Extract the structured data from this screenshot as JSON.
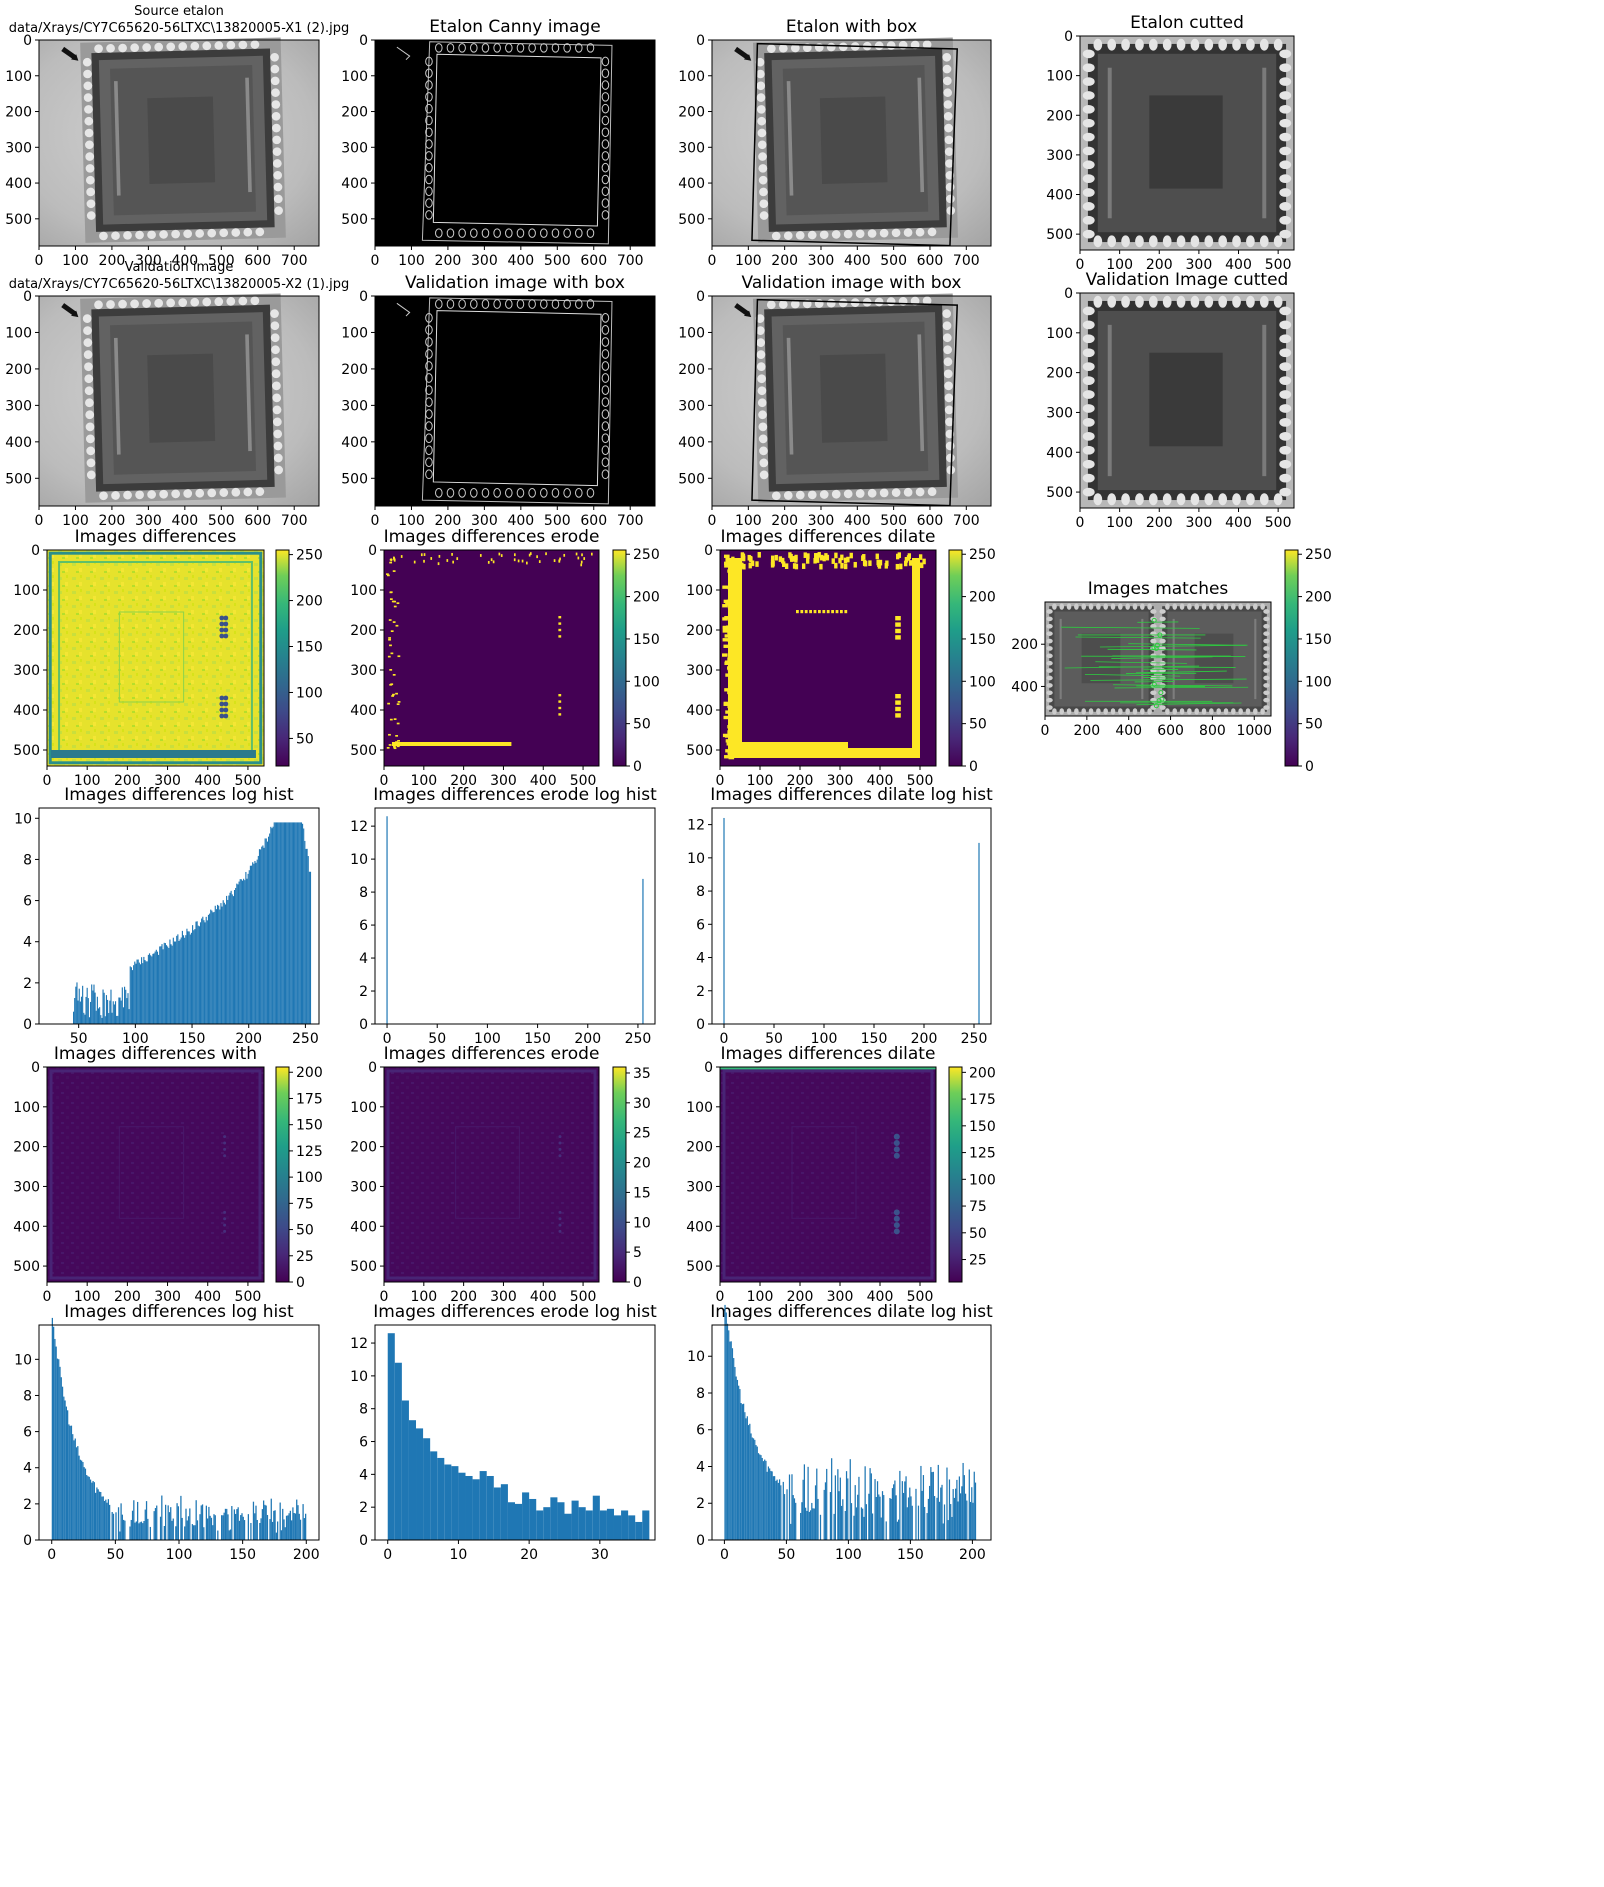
{
  "figure": {
    "colors": {
      "bar": "#1f77b4",
      "frame": "#000000",
      "background": "#ffffff"
    },
    "colormap": "viridis"
  },
  "chart_data": [
    {
      "id": "p00",
      "type": "image",
      "title_lines": [
        "Source etalon",
        "data/Xrays/CY7C65620-56LTXC\\13820005-X1 (2).jpg"
      ],
      "xticks": [
        "0",
        "100",
        "200",
        "300",
        "400",
        "500",
        "600",
        "700"
      ],
      "yticks": [
        "0",
        "100",
        "200",
        "300",
        "400",
        "500"
      ],
      "xlim": [
        0,
        768
      ],
      "ylim": [
        0,
        576
      ],
      "content": "xray-gray"
    },
    {
      "id": "p01",
      "type": "image",
      "title_lines": [
        "Etalon Canny image"
      ],
      "xticks": [
        "0",
        "100",
        "200",
        "300",
        "400",
        "500",
        "600",
        "700"
      ],
      "yticks": [
        "0",
        "100",
        "200",
        "300",
        "400",
        "500"
      ],
      "xlim": [
        0,
        768
      ],
      "ylim": [
        0,
        576
      ],
      "content": "canny"
    },
    {
      "id": "p02",
      "type": "image",
      "title_lines": [
        "Etalon with box"
      ],
      "xticks": [
        "0",
        "100",
        "200",
        "300",
        "400",
        "500",
        "600",
        "700"
      ],
      "yticks": [
        "0",
        "100",
        "200",
        "300",
        "400",
        "500"
      ],
      "xlim": [
        0,
        768
      ],
      "ylim": [
        0,
        576
      ],
      "content": "xray-gray-box"
    },
    {
      "id": "p03",
      "type": "image",
      "title_lines": [
        "Etalon cutted"
      ],
      "xticks": [
        "0",
        "100",
        "200",
        "300",
        "400",
        "500"
      ],
      "yticks": [
        "0",
        "100",
        "200",
        "300",
        "400",
        "500"
      ],
      "xlim": [
        0,
        540
      ],
      "ylim": [
        0,
        540
      ],
      "content": "xray-crop"
    },
    {
      "id": "p10",
      "type": "image",
      "title_lines": [
        "Validation image",
        "data/Xrays/CY7C65620-56LTXC\\13820005-X2 (1).jpg"
      ],
      "xticks": [
        "0",
        "100",
        "200",
        "300",
        "400",
        "500",
        "600",
        "700"
      ],
      "yticks": [
        "0",
        "100",
        "200",
        "300",
        "400",
        "500"
      ],
      "xlim": [
        0,
        768
      ],
      "ylim": [
        0,
        576
      ],
      "content": "xray-gray"
    },
    {
      "id": "p11",
      "type": "image",
      "title_lines": [
        "Validation image with box"
      ],
      "xticks": [
        "0",
        "100",
        "200",
        "300",
        "400",
        "500",
        "600",
        "700"
      ],
      "yticks": [
        "0",
        "100",
        "200",
        "300",
        "400",
        "500"
      ],
      "xlim": [
        0,
        768
      ],
      "ylim": [
        0,
        576
      ],
      "content": "canny"
    },
    {
      "id": "p12",
      "type": "image",
      "title_lines": [
        "Validation image with box"
      ],
      "xticks": [
        "0",
        "100",
        "200",
        "300",
        "400",
        "500",
        "600",
        "700"
      ],
      "yticks": [
        "0",
        "100",
        "200",
        "300",
        "400",
        "500"
      ],
      "xlim": [
        0,
        768
      ],
      "ylim": [
        0,
        576
      ],
      "content": "xray-gray-box"
    },
    {
      "id": "p13",
      "type": "image",
      "title_lines": [
        "Validation Image cutted"
      ],
      "xticks": [
        "0",
        "100",
        "200",
        "300",
        "400",
        "500"
      ],
      "yticks": [
        "0",
        "100",
        "200",
        "300",
        "400",
        "500"
      ],
      "xlim": [
        0,
        540
      ],
      "ylim": [
        0,
        540
      ],
      "content": "xray-crop"
    },
    {
      "id": "p20",
      "type": "heatmap",
      "title_lines": [
        "Images differences"
      ],
      "xticks": [
        "0",
        "100",
        "200",
        "300",
        "400",
        "500"
      ],
      "yticks": [
        "0",
        "100",
        "200",
        "300",
        "400",
        "500"
      ],
      "xlim": [
        0,
        540
      ],
      "ylim": [
        0,
        540
      ],
      "content": "diff-high",
      "colorbar": {
        "min": 20,
        "max": 255,
        "ticks": [
          50,
          100,
          150,
          200,
          250
        ]
      }
    },
    {
      "id": "p21",
      "type": "heatmap",
      "title_lines": [
        "Images differences erode"
      ],
      "xticks": [
        "0",
        "100",
        "200",
        "300",
        "400",
        "500"
      ],
      "yticks": [
        "0",
        "100",
        "200",
        "300",
        "400",
        "500"
      ],
      "xlim": [
        0,
        540
      ],
      "ylim": [
        0,
        540
      ],
      "content": "diff-erode-bin",
      "colorbar": {
        "min": 0,
        "max": 255,
        "ticks": [
          0,
          50,
          100,
          150,
          200,
          250
        ]
      }
    },
    {
      "id": "p22",
      "type": "heatmap",
      "title_lines": [
        "Images differences dilate"
      ],
      "xticks": [
        "0",
        "100",
        "200",
        "300",
        "400",
        "500"
      ],
      "yticks": [
        "0",
        "100",
        "200",
        "300",
        "400",
        "500"
      ],
      "xlim": [
        0,
        540
      ],
      "ylim": [
        0,
        540
      ],
      "content": "diff-dilate-bin",
      "colorbar": {
        "min": 0,
        "max": 255,
        "ticks": [
          0,
          50,
          100,
          150,
          200,
          250
        ]
      }
    },
    {
      "id": "p23",
      "type": "image",
      "title_lines": [
        "Images matches"
      ],
      "xticks": [
        "0",
        "200",
        "400",
        "600",
        "800",
        "1000"
      ],
      "yticks": [
        "200",
        "400"
      ],
      "xlim": [
        0,
        1080
      ],
      "ylim": [
        0,
        540
      ],
      "content": "matches",
      "colorbar": {
        "min": 0,
        "max": 255,
        "ticks": [
          0,
          50,
          100,
          150,
          200,
          250
        ]
      }
    },
    {
      "id": "p30",
      "type": "bar",
      "title_lines": [
        "Images differences log hist"
      ],
      "xticks": [
        "50",
        "100",
        "150",
        "200",
        "250"
      ],
      "yticks": [
        "0",
        "2",
        "4",
        "6",
        "8",
        "10"
      ],
      "xlim": [
        15,
        262
      ],
      "ylim": [
        0,
        10.5
      ],
      "hist": "rise"
    },
    {
      "id": "p31",
      "type": "bar",
      "title_lines": [
        "Images differences erode log hist"
      ],
      "xticks": [
        "0",
        "50",
        "100",
        "150",
        "200",
        "250"
      ],
      "yticks": [
        "0",
        "2",
        "4",
        "6",
        "8",
        "10",
        "12"
      ],
      "xlim": [
        -12,
        267
      ],
      "ylim": [
        0,
        13.1
      ],
      "x": [
        0,
        255
      ],
      "values": [
        12.6,
        8.8
      ]
    },
    {
      "id": "p32",
      "type": "bar",
      "title_lines": [
        "Images differences dilate log hist"
      ],
      "xticks": [
        "0",
        "50",
        "100",
        "150",
        "200",
        "250"
      ],
      "yticks": [
        "0",
        "2",
        "4",
        "6",
        "8",
        "10",
        "12"
      ],
      "xlim": [
        -12,
        267
      ],
      "ylim": [
        0,
        13.0
      ],
      "x": [
        0,
        255
      ],
      "values": [
        12.4,
        10.9
      ]
    },
    {
      "id": "p40",
      "type": "heatmap",
      "title_lines": [
        "Images differences with"
      ],
      "xticks": [
        "0",
        "100",
        "200",
        "300",
        "400",
        "500"
      ],
      "yticks": [
        "0",
        "100",
        "200",
        "300",
        "400",
        "500"
      ],
      "xlim": [
        0,
        540
      ],
      "ylim": [
        0,
        540
      ],
      "content": "diff-low",
      "colorbar": {
        "min": 0,
        "max": 205,
        "ticks": [
          0,
          25,
          50,
          75,
          100,
          125,
          150,
          175,
          200
        ]
      }
    },
    {
      "id": "p41",
      "type": "heatmap",
      "title_lines": [
        "Images differences erode"
      ],
      "xticks": [
        "0",
        "100",
        "200",
        "300",
        "400",
        "500"
      ],
      "yticks": [
        "0",
        "100",
        "200",
        "300",
        "400",
        "500"
      ],
      "xlim": [
        0,
        540
      ],
      "ylim": [
        0,
        540
      ],
      "content": "diff-low-erode",
      "colorbar": {
        "min": 0,
        "max": 36,
        "ticks": [
          0,
          5,
          10,
          15,
          20,
          25,
          30,
          35
        ]
      }
    },
    {
      "id": "p42",
      "type": "heatmap",
      "title_lines": [
        "Images differences dilate"
      ],
      "xticks": [
        "0",
        "100",
        "200",
        "300",
        "400",
        "500"
      ],
      "yticks": [
        "0",
        "100",
        "200",
        "300",
        "400",
        "500"
      ],
      "xlim": [
        0,
        540
      ],
      "ylim": [
        0,
        540
      ],
      "content": "diff-low-dilate",
      "colorbar": {
        "min": 4,
        "max": 205,
        "ticks": [
          25,
          50,
          75,
          100,
          125,
          150,
          175,
          200
        ]
      }
    },
    {
      "id": "p50",
      "type": "bar",
      "title_lines": [
        "Images differences log hist"
      ],
      "xticks": [
        "0",
        "50",
        "100",
        "150",
        "200"
      ],
      "yticks": [
        "0",
        "2",
        "4",
        "6",
        "8",
        "10"
      ],
      "xlim": [
        -10,
        210
      ],
      "ylim": [
        0,
        11.9
      ],
      "hist": "decay-a"
    },
    {
      "id": "p51",
      "type": "bar",
      "title_lines": [
        "Images differences erode log hist"
      ],
      "xticks": [
        "0",
        "10",
        "20",
        "30"
      ],
      "yticks": [
        "0",
        "2",
        "4",
        "6",
        "8",
        "10",
        "12"
      ],
      "xlim": [
        -1.8,
        37.8
      ],
      "ylim": [
        0,
        13.1
      ],
      "x": [
        0,
        1,
        2,
        3,
        4,
        5,
        6,
        7,
        8,
        9,
        10,
        11,
        12,
        13,
        14,
        15,
        16,
        17,
        18,
        19,
        20,
        21,
        22,
        23,
        24,
        25,
        26,
        27,
        28,
        29,
        30,
        31,
        32,
        33,
        34,
        35,
        36
      ],
      "values": [
        12.6,
        10.8,
        8.5,
        7.3,
        6.8,
        6.2,
        5.4,
        5.0,
        4.6,
        4.5,
        4.1,
        3.9,
        3.7,
        4.2,
        3.9,
        3.2,
        3.4,
        2.3,
        2.2,
        2.9,
        2.5,
        1.8,
        2.0,
        2.6,
        2.3,
        1.6,
        2.4,
        2.0,
        1.8,
        2.7,
        1.8,
        1.9,
        1.5,
        1.8,
        1.5,
        1.1,
        1.8
      ]
    },
    {
      "id": "p52",
      "type": "bar",
      "title_lines": [
        "Images differences dilate log hist"
      ],
      "xticks": [
        "0",
        "50",
        "100",
        "150",
        "200"
      ],
      "yticks": [
        "0",
        "2",
        "4",
        "6",
        "8",
        "10"
      ],
      "xlim": [
        -10,
        215
      ],
      "ylim": [
        0,
        11.7
      ],
      "hist": "decay-b"
    }
  ]
}
